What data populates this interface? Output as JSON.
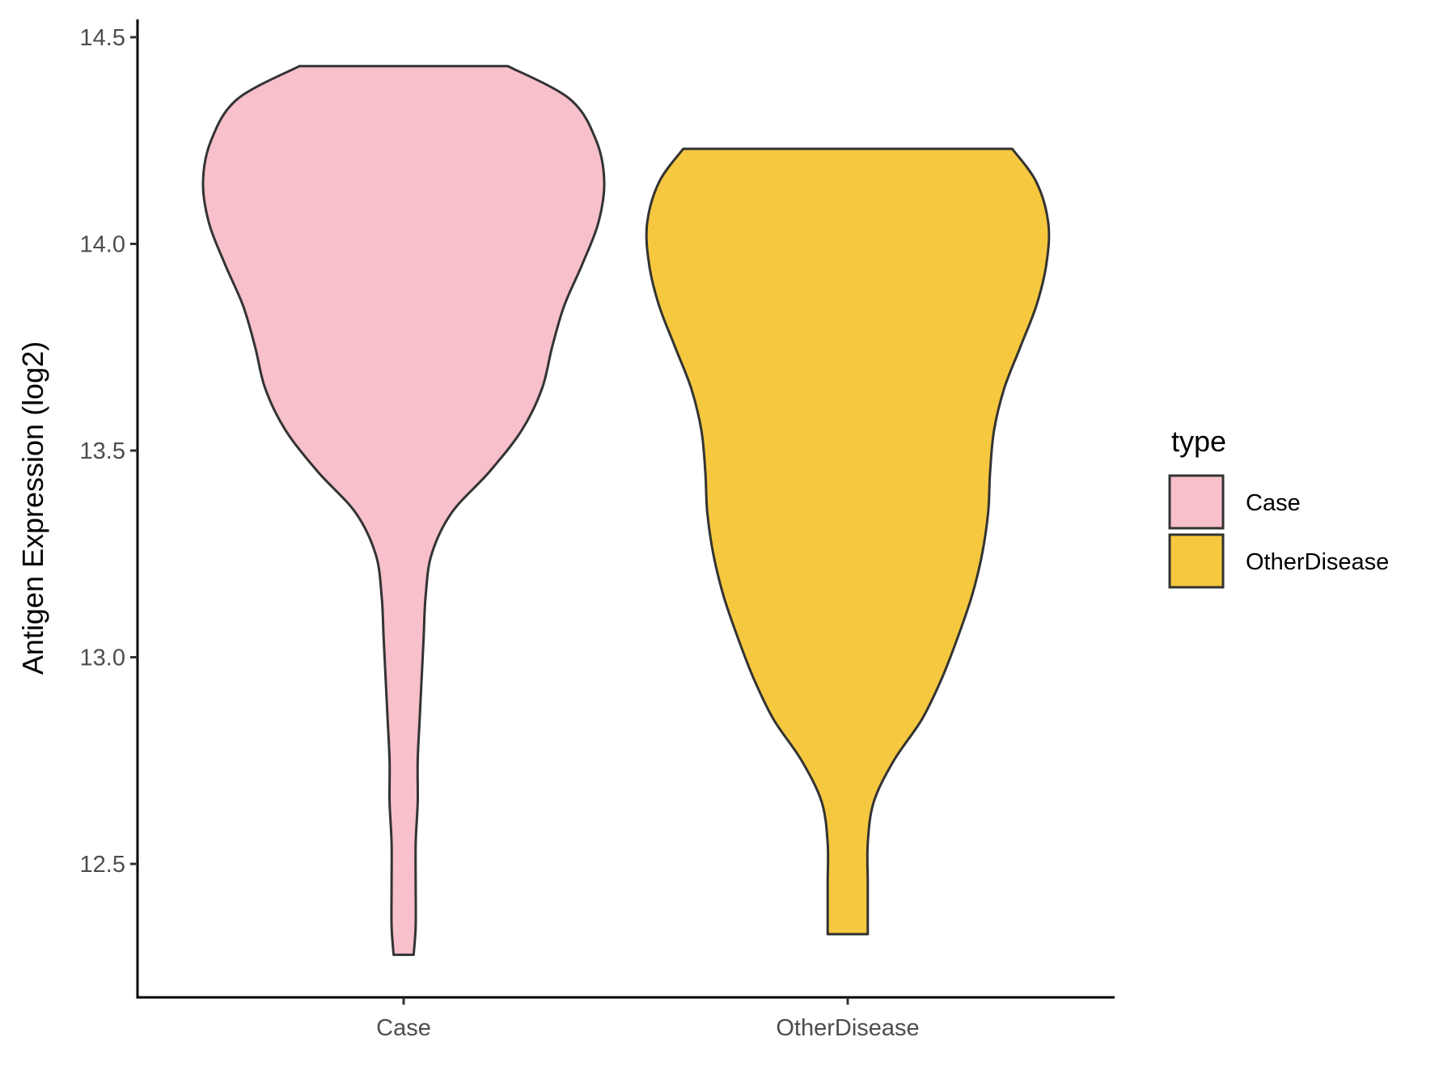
{
  "chart_data": {
    "type": "violin",
    "ylabel": "Antigen Expression (log2)",
    "ylim": [
      12.2,
      14.55
    ],
    "yticks": [
      "12.5",
      "13.0",
      "13.5",
      "14.0",
      "14.5"
    ],
    "categories": [
      "Case",
      "OtherDisease"
    ],
    "colors": {
      "Case": "#F7C0CB",
      "OtherDisease": "#F5C83F",
      "outline": "#333333"
    },
    "legend": {
      "title": "type",
      "position": "right",
      "entries": [
        "Case",
        "OtherDisease"
      ]
    },
    "series": [
      {
        "name": "Case",
        "y_min": 12.28,
        "y_max": 14.43,
        "density_profile": [
          [
            12.28,
            0.05
          ],
          [
            12.35,
            0.06
          ],
          [
            12.45,
            0.06
          ],
          [
            12.55,
            0.06
          ],
          [
            12.65,
            0.07
          ],
          [
            12.75,
            0.07
          ],
          [
            12.85,
            0.08
          ],
          [
            12.95,
            0.09
          ],
          [
            13.05,
            0.1
          ],
          [
            13.15,
            0.11
          ],
          [
            13.25,
            0.14
          ],
          [
            13.35,
            0.24
          ],
          [
            13.45,
            0.43
          ],
          [
            13.55,
            0.59
          ],
          [
            13.65,
            0.69
          ],
          [
            13.75,
            0.74
          ],
          [
            13.85,
            0.8
          ],
          [
            13.95,
            0.89
          ],
          [
            14.05,
            0.97
          ],
          [
            14.15,
            1.0
          ],
          [
            14.25,
            0.96
          ],
          [
            14.35,
            0.83
          ],
          [
            14.43,
            0.52
          ]
        ]
      },
      {
        "name": "OtherDisease",
        "y_min": 12.33,
        "y_max": 14.23,
        "density_profile": [
          [
            12.33,
            0.1
          ],
          [
            12.45,
            0.1
          ],
          [
            12.55,
            0.1
          ],
          [
            12.65,
            0.13
          ],
          [
            12.75,
            0.23
          ],
          [
            12.85,
            0.37
          ],
          [
            12.95,
            0.47
          ],
          [
            13.05,
            0.55
          ],
          [
            13.15,
            0.62
          ],
          [
            13.25,
            0.67
          ],
          [
            13.35,
            0.7
          ],
          [
            13.45,
            0.71
          ],
          [
            13.55,
            0.73
          ],
          [
            13.65,
            0.78
          ],
          [
            13.75,
            0.86
          ],
          [
            13.85,
            0.94
          ],
          [
            13.95,
            0.99
          ],
          [
            14.05,
            1.0
          ],
          [
            14.15,
            0.94
          ],
          [
            14.23,
            0.82
          ]
        ]
      }
    ]
  }
}
